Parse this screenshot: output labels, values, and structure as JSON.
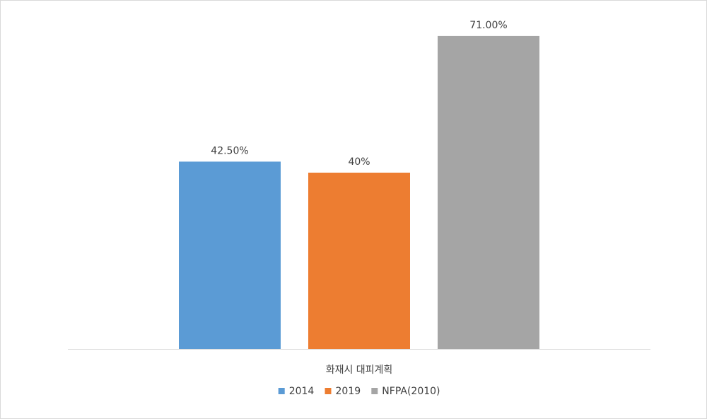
{
  "chart_data": {
    "type": "bar",
    "categories": [
      "화재시 대피계획"
    ],
    "series": [
      {
        "name": "2014",
        "values": [
          42.5
        ],
        "label": "42.50%",
        "color": "#5b9bd5"
      },
      {
        "name": "2019",
        "values": [
          40
        ],
        "label": "40%",
        "color": "#ed7d31"
      },
      {
        "name": "NFPA(2010)",
        "values": [
          71
        ],
        "label": "71.00%",
        "color": "#a5a5a5"
      }
    ],
    "ylim": [
      0,
      75
    ],
    "grid": false,
    "legend": "bottom"
  }
}
